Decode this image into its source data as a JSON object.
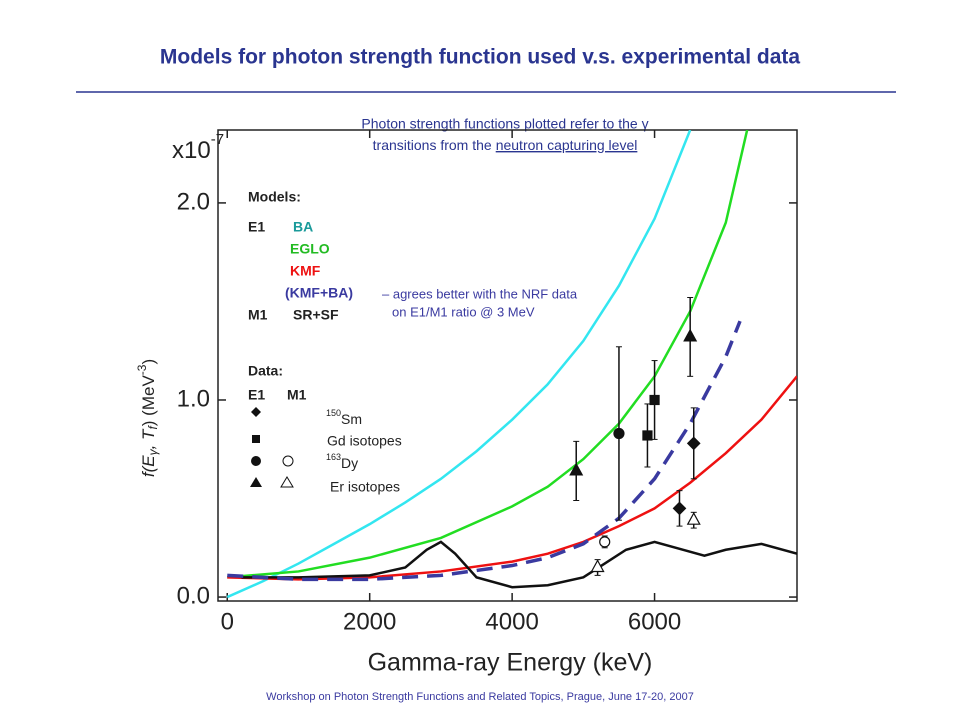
{
  "header": {
    "title": "Models for photon strength function used v.s. experimental data"
  },
  "footer": "Workshop on Photon Strength Functions and Related Topics, Prague, June 17-20, 2007",
  "chart_data": {
    "type": "line",
    "subtitle": [
      "Photon strength functions plotted refer to the γ",
      "transitions from the",
      "neutron capturing level"
    ],
    "scale_label": [
      "x10",
      "-7"
    ],
    "xlabel": "Gamma-ray Energy (keV)",
    "ylabel": [
      "f(E",
      "γ",
      ", T",
      "f",
      ") (MeV",
      "-3",
      ")"
    ],
    "xlim": [
      -130,
      8000
    ],
    "xticks": [
      0,
      2000,
      4000,
      6000
    ],
    "ylim": [
      -0.02,
      2.37
    ],
    "yticks": [
      {
        "value": 0,
        "label": "0.0"
      },
      {
        "value": 1,
        "label": "1.0"
      },
      {
        "value": 2,
        "label": "2.0"
      }
    ],
    "series": [
      {
        "name": "BA",
        "color": "#33e6f0",
        "x": [
          0,
          500,
          1000,
          1500,
          2000,
          2500,
          3000,
          3500,
          4000,
          4500,
          5000,
          5500,
          6000,
          6500
        ],
        "values": [
          0,
          0.08,
          0.17,
          0.27,
          0.37,
          0.48,
          0.6,
          0.74,
          0.9,
          1.08,
          1.3,
          1.58,
          1.92,
          2.37
        ]
      },
      {
        "name": "EGLO",
        "color": "#22dd22",
        "x": [
          0,
          1000,
          2000,
          3000,
          4000,
          4500,
          5000,
          5500,
          6000,
          6500,
          7000,
          7300
        ],
        "values": [
          0.1,
          0.13,
          0.2,
          0.3,
          0.46,
          0.56,
          0.7,
          0.88,
          1.12,
          1.45,
          1.9,
          2.37
        ]
      },
      {
        "name": "KMF",
        "color": "#ee1111",
        "x": [
          0,
          1000,
          2000,
          3000,
          4000,
          4500,
          5000,
          5500,
          6000,
          6500,
          7000,
          7500,
          8000
        ],
        "values": [
          0.1,
          0.09,
          0.1,
          0.13,
          0.18,
          0.22,
          0.28,
          0.36,
          0.45,
          0.58,
          0.73,
          0.9,
          1.12
        ]
      },
      {
        "name": "SR+SF",
        "color": "#111111",
        "x": [
          200,
          1000,
          2000,
          2500,
          2800,
          3000,
          3200,
          3500,
          4000,
          4500,
          5000,
          5300,
          5600,
          6000,
          6300,
          6700,
          7000,
          7500,
          8000
        ],
        "values": [
          0.1,
          0.1,
          0.11,
          0.15,
          0.24,
          0.28,
          0.22,
          0.1,
          0.05,
          0.06,
          0.1,
          0.17,
          0.24,
          0.28,
          0.25,
          0.21,
          0.24,
          0.27,
          0.22
        ]
      },
      {
        "name": "(KMF+BA)",
        "color": "#3a3aa0",
        "dashed": true,
        "x": [
          0,
          1000,
          2000,
          3000,
          4000,
          4500,
          5000,
          5500,
          6000,
          6500,
          7000,
          7200
        ],
        "values": [
          0.11,
          0.09,
          0.09,
          0.11,
          0.16,
          0.2,
          0.27,
          0.4,
          0.6,
          0.88,
          1.22,
          1.4
        ]
      }
    ],
    "points": [
      {
        "x": 6350,
        "y": 0.45,
        "err": 0.09,
        "marker": "diamond"
      },
      {
        "x": 6550,
        "y": 0.78,
        "err": 0.18,
        "marker": "diamond"
      },
      {
        "x": 5900,
        "y": 0.82,
        "err": 0.16,
        "marker": "square"
      },
      {
        "x": 6000,
        "y": 1.0,
        "err": 0.2,
        "marker": "square"
      },
      {
        "x": 5500,
        "y": 0.83,
        "err": 0.44,
        "marker": "circle"
      },
      {
        "x": 5300,
        "y": 0.28,
        "err": 0.03,
        "marker": "open-circle"
      },
      {
        "x": 4900,
        "y": 0.64,
        "err": 0.15,
        "marker": "triangle"
      },
      {
        "x": 6500,
        "y": 1.32,
        "err": 0.2,
        "marker": "triangle"
      },
      {
        "x": 5200,
        "y": 0.15,
        "err": 0.04,
        "marker": "open-triangle"
      },
      {
        "x": 6550,
        "y": 0.39,
        "err": 0.04,
        "marker": "open-triangle"
      }
    ],
    "legend": {
      "models": "Models:",
      "e1": "E1",
      "m1": "M1",
      "note": [
        "– agrees better with the NRF data",
        "on E1/M1 ratio @ 3 MeV"
      ],
      "data": "Data:",
      "data_e1": "E1",
      "data_m1": "M1",
      "sm": [
        "150",
        "Sm"
      ],
      "gd": "Gd isotopes",
      "dy": [
        "163",
        "Dy"
      ],
      "er": "Er isotopes"
    }
  }
}
